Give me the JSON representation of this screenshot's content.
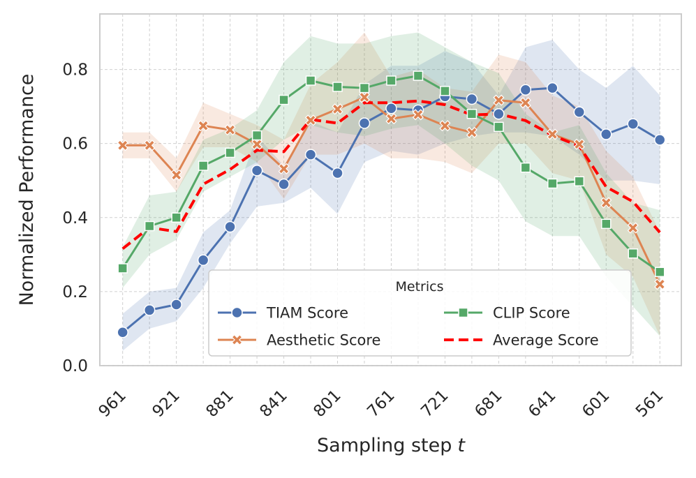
{
  "chart_data": {
    "type": "line",
    "xlabel_main": "Sampling step",
    "xlabel_var": "t",
    "ylabel": "Normalized Performance",
    "x": [
      961,
      941,
      921,
      901,
      881,
      861,
      841,
      821,
      801,
      781,
      761,
      741,
      721,
      701,
      681,
      661,
      641,
      621,
      601,
      581,
      561
    ],
    "x_ticks": [
      961,
      921,
      881,
      841,
      801,
      761,
      721,
      681,
      641,
      601,
      561
    ],
    "x_tick_labels": [
      "961",
      "921",
      "881",
      "841",
      "801",
      "761",
      "721",
      "681",
      "641",
      "601",
      "561"
    ],
    "x_reversed": true,
    "xlim": [
      978,
      545
    ],
    "ylim": [
      0.0,
      0.95
    ],
    "y_ticks": [
      0.0,
      0.2,
      0.4,
      0.6,
      0.8
    ],
    "y_tick_labels": [
      "0.0",
      "0.2",
      "0.4",
      "0.6",
      "0.8"
    ],
    "grid": true,
    "legend": {
      "title": "Metrics",
      "position": "bottom-center",
      "columns": 2
    },
    "series": [
      {
        "name": "TIAM Score",
        "color": "#4c72b0",
        "marker": "circle",
        "line": "solid",
        "values": [
          0.09,
          0.15,
          0.165,
          0.285,
          0.375,
          0.527,
          0.49,
          0.57,
          0.52,
          0.655,
          0.695,
          0.69,
          0.727,
          0.72,
          0.68,
          0.745,
          0.75,
          0.685,
          0.625,
          0.653,
          0.61
        ],
        "band_low": [
          0.04,
          0.1,
          0.12,
          0.21,
          0.33,
          0.43,
          0.44,
          0.48,
          0.41,
          0.55,
          0.58,
          0.57,
          0.6,
          0.62,
          0.63,
          0.63,
          0.62,
          0.57,
          0.5,
          0.5,
          0.49
        ],
        "band_high": [
          0.14,
          0.2,
          0.21,
          0.36,
          0.42,
          0.62,
          0.54,
          0.66,
          0.63,
          0.76,
          0.81,
          0.81,
          0.85,
          0.82,
          0.73,
          0.86,
          0.88,
          0.8,
          0.75,
          0.81,
          0.73
        ]
      },
      {
        "name": "Aesthetic Score",
        "color": "#dd8452",
        "marker": "x",
        "line": "solid",
        "values": [
          0.595,
          0.595,
          0.515,
          0.648,
          0.637,
          0.598,
          0.532,
          0.663,
          0.693,
          0.725,
          0.667,
          0.678,
          0.648,
          0.63,
          0.717,
          0.71,
          0.625,
          0.598,
          0.44,
          0.372,
          0.22
        ],
        "band_low": [
          0.56,
          0.56,
          0.47,
          0.59,
          0.59,
          0.55,
          0.45,
          0.57,
          0.57,
          0.6,
          0.56,
          0.56,
          0.55,
          0.52,
          0.6,
          0.6,
          0.52,
          0.5,
          0.3,
          0.24,
          0.08
        ],
        "band_high": [
          0.63,
          0.63,
          0.56,
          0.71,
          0.68,
          0.65,
          0.61,
          0.76,
          0.82,
          0.9,
          0.78,
          0.8,
          0.75,
          0.74,
          0.84,
          0.82,
          0.73,
          0.7,
          0.58,
          0.51,
          0.36
        ]
      },
      {
        "name": "CLIP Score",
        "color": "#55a868",
        "marker": "square",
        "line": "solid",
        "values": [
          0.263,
          0.377,
          0.4,
          0.54,
          0.575,
          0.622,
          0.718,
          0.77,
          0.753,
          0.75,
          0.77,
          0.783,
          0.742,
          0.68,
          0.645,
          0.535,
          0.492,
          0.498,
          0.383,
          0.303,
          0.253
        ],
        "band_low": [
          0.21,
          0.3,
          0.34,
          0.47,
          0.51,
          0.55,
          0.61,
          0.65,
          0.63,
          0.62,
          0.64,
          0.65,
          0.6,
          0.54,
          0.5,
          0.39,
          0.35,
          0.35,
          0.24,
          0.16,
          0.08
        ],
        "band_high": [
          0.32,
          0.46,
          0.47,
          0.61,
          0.64,
          0.69,
          0.82,
          0.89,
          0.87,
          0.87,
          0.89,
          0.9,
          0.86,
          0.82,
          0.79,
          0.68,
          0.63,
          0.65,
          0.52,
          0.44,
          0.42
        ]
      },
      {
        "name": "Average Score",
        "color": "#ff0000",
        "marker": "none",
        "line": "dashed",
        "values": [
          0.316,
          0.373,
          0.362,
          0.49,
          0.53,
          0.582,
          0.578,
          0.665,
          0.655,
          0.71,
          0.71,
          0.715,
          0.705,
          0.677,
          0.68,
          0.662,
          0.622,
          0.593,
          0.483,
          0.443,
          0.36
        ]
      }
    ]
  }
}
